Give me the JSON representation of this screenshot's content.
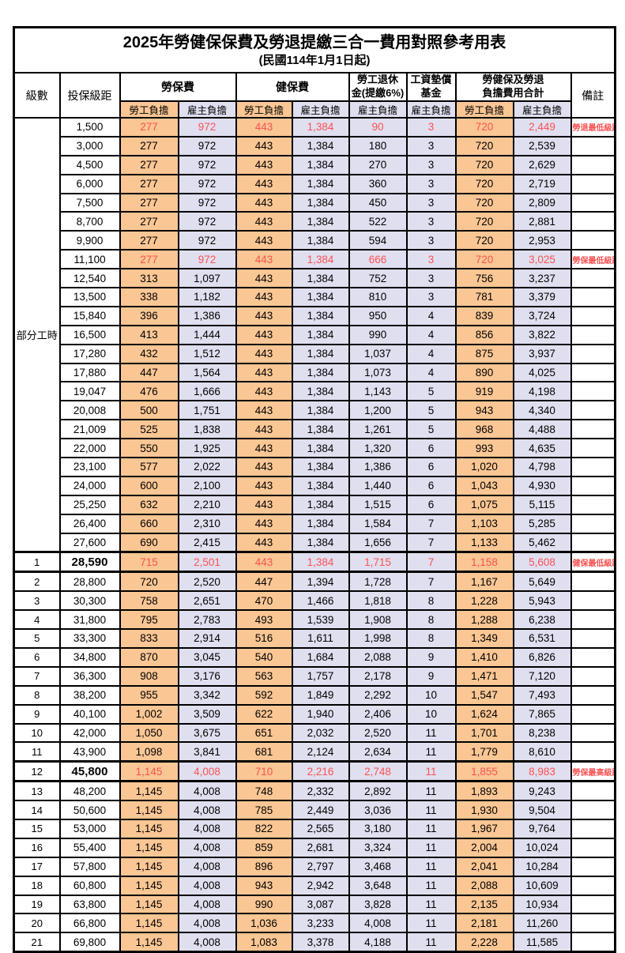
{
  "title": "2025年勞健保保費及勞退提繳三合一費用對照參考用表",
  "subtitle": "(民國114年1月1日起)",
  "colors": {
    "employee_bg": "#FAC694",
    "employer_bg": "#E0DFF0",
    "highlight_red": "#FB5151"
  },
  "header": {
    "level": "級數",
    "salary_bracket": "投保級距",
    "labor_insurance": "勞保費",
    "health_insurance": "健保費",
    "pension_line1": "勞工退休",
    "pension_line2": "金(提繳6%)",
    "wage_fund_line1": "工資墊償",
    "wage_fund_line2": "基金",
    "total_line1": "勞健保及勞退",
    "total_line2": "負擔費用合計",
    "note": "備註",
    "employee_share": "勞工負擔",
    "employer_share": "雇主負擔"
  },
  "table": {
    "part_time_label": "部分工時",
    "part_time_span": 23,
    "rows": [
      {
        "lv": "",
        "sal": "1,500",
        "a": "277",
        "b": "972",
        "c": "443",
        "d": "1,384",
        "e": "90",
        "f": "3",
        "g": "720",
        "h": "2,449",
        "note": "勞退最低級距",
        "red": true,
        "emph": false,
        "thick": false
      },
      {
        "lv": "",
        "sal": "3,000",
        "a": "277",
        "b": "972",
        "c": "443",
        "d": "1,384",
        "e": "180",
        "f": "3",
        "g": "720",
        "h": "2,539",
        "note": "",
        "red": false,
        "emph": false,
        "thick": false
      },
      {
        "lv": "",
        "sal": "4,500",
        "a": "277",
        "b": "972",
        "c": "443",
        "d": "1,384",
        "e": "270",
        "f": "3",
        "g": "720",
        "h": "2,629",
        "note": "",
        "red": false,
        "emph": false,
        "thick": false
      },
      {
        "lv": "",
        "sal": "6,000",
        "a": "277",
        "b": "972",
        "c": "443",
        "d": "1,384",
        "e": "360",
        "f": "3",
        "g": "720",
        "h": "2,719",
        "note": "",
        "red": false,
        "emph": false,
        "thick": false
      },
      {
        "lv": "",
        "sal": "7,500",
        "a": "277",
        "b": "972",
        "c": "443",
        "d": "1,384",
        "e": "450",
        "f": "3",
        "g": "720",
        "h": "2,809",
        "note": "",
        "red": false,
        "emph": false,
        "thick": false
      },
      {
        "lv": "",
        "sal": "8,700",
        "a": "277",
        "b": "972",
        "c": "443",
        "d": "1,384",
        "e": "522",
        "f": "3",
        "g": "720",
        "h": "2,881",
        "note": "",
        "red": false,
        "emph": false,
        "thick": false
      },
      {
        "lv": "",
        "sal": "9,900",
        "a": "277",
        "b": "972",
        "c": "443",
        "d": "1,384",
        "e": "594",
        "f": "3",
        "g": "720",
        "h": "2,953",
        "note": "",
        "red": false,
        "emph": false,
        "thick": false
      },
      {
        "lv": "",
        "sal": "11,100",
        "a": "277",
        "b": "972",
        "c": "443",
        "d": "1,384",
        "e": "666",
        "f": "3",
        "g": "720",
        "h": "3,025",
        "note": "勞保最低級距",
        "red": true,
        "emph": false,
        "thick": false
      },
      {
        "lv": "",
        "sal": "12,540",
        "a": "313",
        "b": "1,097",
        "c": "443",
        "d": "1,384",
        "e": "752",
        "f": "3",
        "g": "756",
        "h": "3,237",
        "note": "",
        "red": false,
        "emph": false,
        "thick": false
      },
      {
        "lv": "",
        "sal": "13,500",
        "a": "338",
        "b": "1,182",
        "c": "443",
        "d": "1,384",
        "e": "810",
        "f": "3",
        "g": "781",
        "h": "3,379",
        "note": "",
        "red": false,
        "emph": false,
        "thick": false
      },
      {
        "lv": "",
        "sal": "15,840",
        "a": "396",
        "b": "1,386",
        "c": "443",
        "d": "1,384",
        "e": "950",
        "f": "4",
        "g": "839",
        "h": "3,724",
        "note": "",
        "red": false,
        "emph": false,
        "thick": false
      },
      {
        "lv": "",
        "sal": "16,500",
        "a": "413",
        "b": "1,444",
        "c": "443",
        "d": "1,384",
        "e": "990",
        "f": "4",
        "g": "856",
        "h": "3,822",
        "note": "",
        "red": false,
        "emph": false,
        "thick": false
      },
      {
        "lv": "",
        "sal": "17,280",
        "a": "432",
        "b": "1,512",
        "c": "443",
        "d": "1,384",
        "e": "1,037",
        "f": "4",
        "g": "875",
        "h": "3,937",
        "note": "",
        "red": false,
        "emph": false,
        "thick": false
      },
      {
        "lv": "",
        "sal": "17,880",
        "a": "447",
        "b": "1,564",
        "c": "443",
        "d": "1,384",
        "e": "1,073",
        "f": "4",
        "g": "890",
        "h": "4,025",
        "note": "",
        "red": false,
        "emph": false,
        "thick": false
      },
      {
        "lv": "",
        "sal": "19,047",
        "a": "476",
        "b": "1,666",
        "c": "443",
        "d": "1,384",
        "e": "1,143",
        "f": "5",
        "g": "919",
        "h": "4,198",
        "note": "",
        "red": false,
        "emph": false,
        "thick": false
      },
      {
        "lv": "",
        "sal": "20,008",
        "a": "500",
        "b": "1,751",
        "c": "443",
        "d": "1,384",
        "e": "1,200",
        "f": "5",
        "g": "943",
        "h": "4,340",
        "note": "",
        "red": false,
        "emph": false,
        "thick": false
      },
      {
        "lv": "",
        "sal": "21,009",
        "a": "525",
        "b": "1,838",
        "c": "443",
        "d": "1,384",
        "e": "1,261",
        "f": "5",
        "g": "968",
        "h": "4,488",
        "note": "",
        "red": false,
        "emph": false,
        "thick": false
      },
      {
        "lv": "",
        "sal": "22,000",
        "a": "550",
        "b": "1,925",
        "c": "443",
        "d": "1,384",
        "e": "1,320",
        "f": "6",
        "g": "993",
        "h": "4,635",
        "note": "",
        "red": false,
        "emph": false,
        "thick": false
      },
      {
        "lv": "",
        "sal": "23,100",
        "a": "577",
        "b": "2,022",
        "c": "443",
        "d": "1,384",
        "e": "1,386",
        "f": "6",
        "g": "1,020",
        "h": "4,798",
        "note": "",
        "red": false,
        "emph": false,
        "thick": false
      },
      {
        "lv": "",
        "sal": "24,000",
        "a": "600",
        "b": "2,100",
        "c": "443",
        "d": "1,384",
        "e": "1,440",
        "f": "6",
        "g": "1,043",
        "h": "4,930",
        "note": "",
        "red": false,
        "emph": false,
        "thick": false
      },
      {
        "lv": "",
        "sal": "25,250",
        "a": "632",
        "b": "2,210",
        "c": "443",
        "d": "1,384",
        "e": "1,515",
        "f": "6",
        "g": "1,075",
        "h": "5,115",
        "note": "",
        "red": false,
        "emph": false,
        "thick": false
      },
      {
        "lv": "",
        "sal": "26,400",
        "a": "660",
        "b": "2,310",
        "c": "443",
        "d": "1,384",
        "e": "1,584",
        "f": "7",
        "g": "1,103",
        "h": "5,285",
        "note": "",
        "red": false,
        "emph": false,
        "thick": false
      },
      {
        "lv": "",
        "sal": "27,600",
        "a": "690",
        "b": "2,415",
        "c": "443",
        "d": "1,384",
        "e": "1,656",
        "f": "7",
        "g": "1,133",
        "h": "5,462",
        "note": "",
        "red": false,
        "emph": false,
        "thick": false
      },
      {
        "lv": "1",
        "sal": "28,590",
        "a": "715",
        "b": "2,501",
        "c": "443",
        "d": "1,384",
        "e": "1,715",
        "f": "7",
        "g": "1,158",
        "h": "5,608",
        "note": "健保最低級距",
        "red": true,
        "emph": true,
        "thick": true
      },
      {
        "lv": "2",
        "sal": "28,800",
        "a": "720",
        "b": "2,520",
        "c": "447",
        "d": "1,394",
        "e": "1,728",
        "f": "7",
        "g": "1,167",
        "h": "5,649",
        "note": "",
        "red": false,
        "emph": false,
        "thick": false
      },
      {
        "lv": "3",
        "sal": "30,300",
        "a": "758",
        "b": "2,651",
        "c": "470",
        "d": "1,466",
        "e": "1,818",
        "f": "8",
        "g": "1,228",
        "h": "5,943",
        "note": "",
        "red": false,
        "emph": false,
        "thick": false
      },
      {
        "lv": "4",
        "sal": "31,800",
        "a": "795",
        "b": "2,783",
        "c": "493",
        "d": "1,539",
        "e": "1,908",
        "f": "8",
        "g": "1,288",
        "h": "6,238",
        "note": "",
        "red": false,
        "emph": false,
        "thick": false
      },
      {
        "lv": "5",
        "sal": "33,300",
        "a": "833",
        "b": "2,914",
        "c": "516",
        "d": "1,611",
        "e": "1,998",
        "f": "8",
        "g": "1,349",
        "h": "6,531",
        "note": "",
        "red": false,
        "emph": false,
        "thick": false
      },
      {
        "lv": "6",
        "sal": "34,800",
        "a": "870",
        "b": "3,045",
        "c": "540",
        "d": "1,684",
        "e": "2,088",
        "f": "9",
        "g": "1,410",
        "h": "6,826",
        "note": "",
        "red": false,
        "emph": false,
        "thick": false
      },
      {
        "lv": "7",
        "sal": "36,300",
        "a": "908",
        "b": "3,176",
        "c": "563",
        "d": "1,757",
        "e": "2,178",
        "f": "9",
        "g": "1,471",
        "h": "7,120",
        "note": "",
        "red": false,
        "emph": false,
        "thick": false
      },
      {
        "lv": "8",
        "sal": "38,200",
        "a": "955",
        "b": "3,342",
        "c": "592",
        "d": "1,849",
        "e": "2,292",
        "f": "10",
        "g": "1,547",
        "h": "7,493",
        "note": "",
        "red": false,
        "emph": false,
        "thick": false
      },
      {
        "lv": "9",
        "sal": "40,100",
        "a": "1,002",
        "b": "3,509",
        "c": "622",
        "d": "1,940",
        "e": "2,406",
        "f": "10",
        "g": "1,624",
        "h": "7,865",
        "note": "",
        "red": false,
        "emph": false,
        "thick": false
      },
      {
        "lv": "10",
        "sal": "42,000",
        "a": "1,050",
        "b": "3,675",
        "c": "651",
        "d": "2,032",
        "e": "2,520",
        "f": "11",
        "g": "1,701",
        "h": "8,238",
        "note": "",
        "red": false,
        "emph": false,
        "thick": false
      },
      {
        "lv": "11",
        "sal": "43,900",
        "a": "1,098",
        "b": "3,841",
        "c": "681",
        "d": "2,124",
        "e": "2,634",
        "f": "11",
        "g": "1,779",
        "h": "8,610",
        "note": "",
        "red": false,
        "emph": false,
        "thick": false
      },
      {
        "lv": "12",
        "sal": "45,800",
        "a": "1,145",
        "b": "4,008",
        "c": "710",
        "d": "2,216",
        "e": "2,748",
        "f": "11",
        "g": "1,855",
        "h": "8,983",
        "note": "勞保最高級距",
        "red": true,
        "emph": true,
        "thick": true
      },
      {
        "lv": "13",
        "sal": "48,200",
        "a": "1,145",
        "b": "4,008",
        "c": "748",
        "d": "2,332",
        "e": "2,892",
        "f": "11",
        "g": "1,893",
        "h": "9,243",
        "note": "",
        "red": false,
        "emph": false,
        "thick": false
      },
      {
        "lv": "14",
        "sal": "50,600",
        "a": "1,145",
        "b": "4,008",
        "c": "785",
        "d": "2,449",
        "e": "3,036",
        "f": "11",
        "g": "1,930",
        "h": "9,504",
        "note": "",
        "red": false,
        "emph": false,
        "thick": false
      },
      {
        "lv": "15",
        "sal": "53,000",
        "a": "1,145",
        "b": "4,008",
        "c": "822",
        "d": "2,565",
        "e": "3,180",
        "f": "11",
        "g": "1,967",
        "h": "9,764",
        "note": "",
        "red": false,
        "emph": false,
        "thick": false
      },
      {
        "lv": "16",
        "sal": "55,400",
        "a": "1,145",
        "b": "4,008",
        "c": "859",
        "d": "2,681",
        "e": "3,324",
        "f": "11",
        "g": "2,004",
        "h": "10,024",
        "note": "",
        "red": false,
        "emph": false,
        "thick": false
      },
      {
        "lv": "17",
        "sal": "57,800",
        "a": "1,145",
        "b": "4,008",
        "c": "896",
        "d": "2,797",
        "e": "3,468",
        "f": "11",
        "g": "2,041",
        "h": "10,284",
        "note": "",
        "red": false,
        "emph": false,
        "thick": false
      },
      {
        "lv": "18",
        "sal": "60,800",
        "a": "1,145",
        "b": "4,008",
        "c": "943",
        "d": "2,942",
        "e": "3,648",
        "f": "11",
        "g": "2,088",
        "h": "10,609",
        "note": "",
        "red": false,
        "emph": false,
        "thick": false
      },
      {
        "lv": "19",
        "sal": "63,800",
        "a": "1,145",
        "b": "4,008",
        "c": "990",
        "d": "3,087",
        "e": "3,828",
        "f": "11",
        "g": "2,135",
        "h": "10,934",
        "note": "",
        "red": false,
        "emph": false,
        "thick": false
      },
      {
        "lv": "20",
        "sal": "66,800",
        "a": "1,145",
        "b": "4,008",
        "c": "1,036",
        "d": "3,233",
        "e": "4,008",
        "f": "11",
        "g": "2,181",
        "h": "11,260",
        "note": "",
        "red": false,
        "emph": false,
        "thick": false
      },
      {
        "lv": "21",
        "sal": "69,800",
        "a": "1,145",
        "b": "4,008",
        "c": "1,083",
        "d": "3,378",
        "e": "4,188",
        "f": "11",
        "g": "2,228",
        "h": "11,585",
        "note": "",
        "red": false,
        "emph": false,
        "thick": false
      }
    ]
  }
}
